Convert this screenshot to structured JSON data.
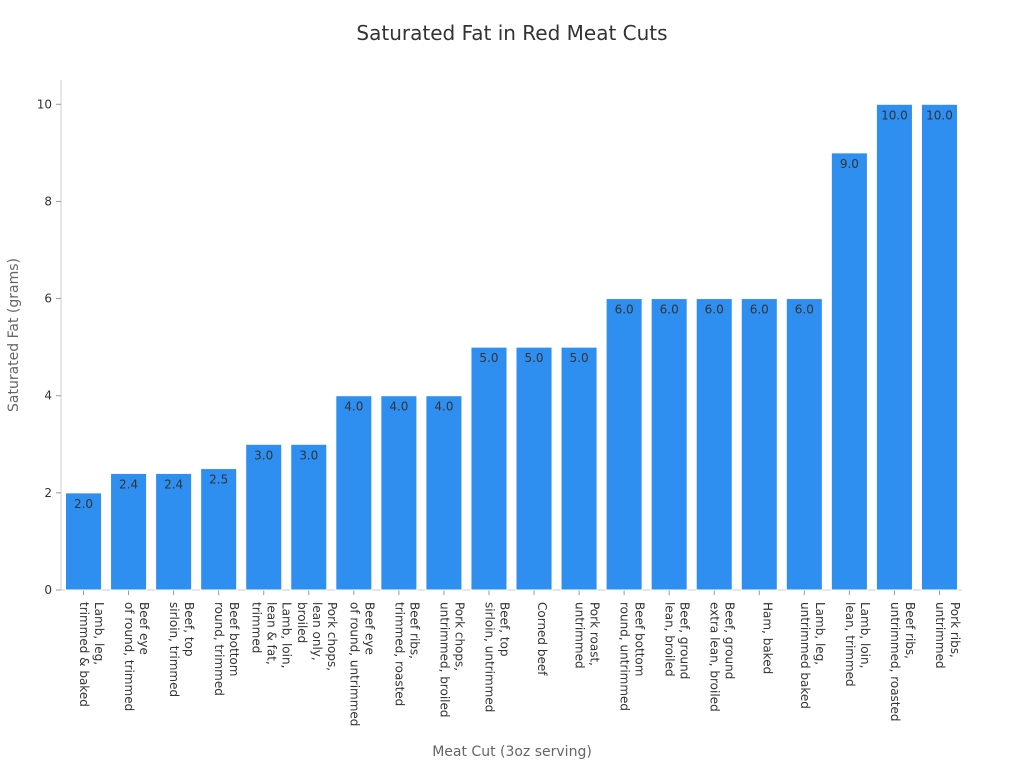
{
  "chart_data": {
    "type": "bar",
    "title": "Saturated Fat in Red Meat Cuts",
    "xlabel": "Meat Cut (3oz serving)",
    "ylabel": "Saturated Fat (grams)",
    "ylim": [
      0,
      10.5
    ],
    "yticks": [
      0,
      2,
      4,
      6,
      8,
      10
    ],
    "grid": false,
    "legend": "none",
    "bar_color": "#2E8FF0",
    "bar_edge_color": "#ffffff",
    "categories": [
      [
        "Lamb, leg,",
        "trimmed & baked"
      ],
      [
        "Beef eye",
        "of round, trimmed"
      ],
      [
        "Beef, top",
        "sirloin, trimmed"
      ],
      [
        "Beef bottom",
        "round, trimmed"
      ],
      [
        "Lamb, loin,",
        "lean & fat,",
        "trimmed"
      ],
      [
        "Pork chops,",
        "lean only,",
        "broiled"
      ],
      [
        "Beef eye",
        "of round, untrimmed"
      ],
      [
        "Beef ribs,",
        "trimmed, roasted"
      ],
      [
        "Pork chops,",
        "untrimmed, broiled"
      ],
      [
        "Beef, top",
        "sirloin, untrimmed"
      ],
      [
        "Corned beef"
      ],
      [
        "Pork roast,",
        "untrimmed"
      ],
      [
        "Beef bottom",
        "round, untrimmed"
      ],
      [
        "Beef, ground",
        "lean, broiled"
      ],
      [
        "Beef, ground",
        "extra lean, broiled"
      ],
      [
        "Ham, baked"
      ],
      [
        "Lamb, leg,",
        "untrimmed baked"
      ],
      [
        "Lamb, loin,",
        "lean, trimmed"
      ],
      [
        "Beef ribs,",
        "untrimmed, roasted"
      ],
      [
        "Pork ribs,",
        "untrimmed"
      ]
    ],
    "values": [
      2.0,
      2.4,
      2.4,
      2.5,
      3.0,
      3.0,
      4.0,
      4.0,
      4.0,
      5.0,
      5.0,
      5.0,
      6.0,
      6.0,
      6.0,
      6.0,
      6.0,
      9.0,
      10.0,
      10.0
    ],
    "data_labels": [
      "2.0",
      "2.4",
      "2.4",
      "2.5",
      "3.0",
      "3.0",
      "4.0",
      "4.0",
      "4.0",
      "5.0",
      "5.0",
      "5.0",
      "6.0",
      "6.0",
      "6.0",
      "6.0",
      "6.0",
      "9.0",
      "10.0",
      "10.0"
    ]
  }
}
